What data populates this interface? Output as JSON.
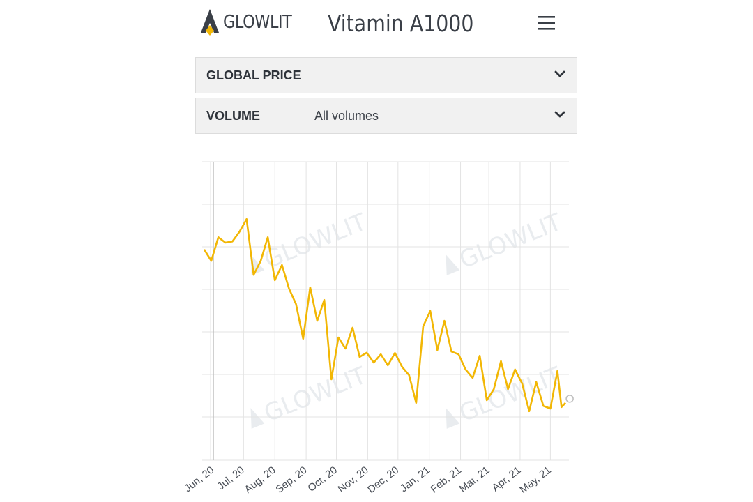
{
  "header": {
    "logo_text": "GLOWLIT",
    "title": "Vitamin A1000",
    "menu_icon": "hamburger-menu-icon"
  },
  "filters": {
    "price": {
      "label": "GLOBAL PRICE",
      "value": "",
      "icon": "chevron-down-icon"
    },
    "volume": {
      "label": "VOLUME",
      "value": "All volumes",
      "icon": "chevron-down-icon"
    }
  },
  "watermark": {
    "text": "GLOWLIT"
  },
  "colors": {
    "line": "#f2b705",
    "grid": "#e3e3e3",
    "text": "#3a3f47",
    "panel": "#f1f1f1"
  },
  "chart_data": {
    "type": "line",
    "title": "",
    "xlabel": "",
    "ylabel": "",
    "grid": true,
    "x_ticks": [
      "Jun, 20",
      "Jul, 20",
      "Aug, 20",
      "Sep, 20",
      "Oct, 20",
      "Nov, 20",
      "Dec, 20",
      "Jan, 21",
      "Feb, 21",
      "Mar, 21",
      "Apr, 21",
      "May, 21"
    ],
    "x_range": [
      "2020-05-21",
      "2021-05-18"
    ],
    "y_range": [
      0,
      100
    ],
    "series": [
      {
        "x": [
          "2020-05-23",
          "2020-05-30",
          "2020-06-06",
          "2020-06-13",
          "2020-06-20",
          "2020-06-27",
          "2020-07-04",
          "2020-07-11",
          "2020-07-18",
          "2020-07-25",
          "2020-08-01",
          "2020-08-08",
          "2020-08-15",
          "2020-08-22",
          "2020-08-29",
          "2020-09-05",
          "2020-09-12",
          "2020-09-19",
          "2020-09-26",
          "2020-10-03",
          "2020-10-10",
          "2020-10-17",
          "2020-10-24",
          "2020-10-31",
          "2020-11-07",
          "2020-11-14",
          "2020-11-21",
          "2020-11-28",
          "2020-12-05",
          "2020-12-12",
          "2020-12-19",
          "2020-12-26",
          "2021-01-02",
          "2021-01-09",
          "2021-01-16",
          "2021-01-23",
          "2021-01-30",
          "2021-02-06",
          "2021-02-13",
          "2021-02-20",
          "2021-02-27",
          "2021-03-06",
          "2021-03-13",
          "2021-03-20",
          "2021-03-27",
          "2021-04-03",
          "2021-04-10",
          "2021-04-17",
          "2021-04-24",
          "2021-05-01",
          "2021-05-08",
          "2021-05-12",
          "2021-05-16"
        ],
        "y": [
          70.6,
          66.8,
          74.7,
          72.9,
          73.3,
          76.6,
          80.8,
          62.1,
          66.8,
          74.7,
          60.3,
          65.4,
          57.5,
          52.3,
          40.7,
          57.9,
          46.7,
          53.7,
          27.1,
          41.1,
          37.4,
          44.4,
          34.6,
          36.0,
          32.7,
          35.5,
          31.8,
          35.9,
          31.3,
          28.5,
          19.2,
          44.9,
          50.0,
          36.9,
          46.7,
          36.4,
          35.5,
          30.4,
          27.6,
          35.0,
          20.1,
          23.8,
          33.2,
          23.8,
          30.4,
          25.7,
          16.4,
          26.2,
          18.2,
          17.3,
          29.9,
          17.8,
          19.2
        ]
      }
    ]
  }
}
